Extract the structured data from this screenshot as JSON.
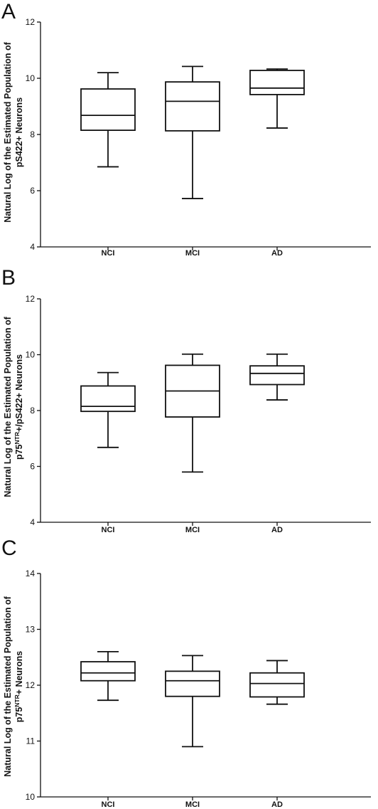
{
  "chart_data": [
    {
      "type": "box",
      "panel_label": "A",
      "title": "",
      "xlabel": "",
      "ylabel_lines": [
        "Natural Log of the Estimated Population of",
        "pS422+ Neurons"
      ],
      "ylim": [
        4,
        12
      ],
      "yticks": [
        4,
        6,
        8,
        10,
        12
      ],
      "categories": [
        "NCI",
        "MCI",
        "AD"
      ],
      "boxes": [
        {
          "category": "NCI",
          "min": 6.85,
          "q1": 8.15,
          "median": 8.68,
          "q3": 9.62,
          "max": 10.2
        },
        {
          "category": "MCI",
          "min": 5.72,
          "q1": 8.13,
          "median": 9.18,
          "q3": 9.87,
          "max": 10.42
        },
        {
          "category": "AD",
          "min": 8.23,
          "q1": 9.42,
          "median": 9.65,
          "q3": 10.28,
          "max": 10.33
        }
      ]
    },
    {
      "type": "box",
      "panel_label": "B",
      "title": "",
      "xlabel": "",
      "ylabel_lines": [
        "Natural Log of the Estimated Population of",
        "p75NTR+/pS422+ Neurons"
      ],
      "ylim": [
        4,
        12
      ],
      "yticks": [
        4,
        6,
        8,
        10,
        12
      ],
      "categories": [
        "NCI",
        "MCI",
        "AD"
      ],
      "boxes": [
        {
          "category": "NCI",
          "min": 6.68,
          "q1": 7.97,
          "median": 8.15,
          "q3": 8.88,
          "max": 9.36
        },
        {
          "category": "MCI",
          "min": 5.8,
          "q1": 7.77,
          "median": 8.7,
          "q3": 9.62,
          "max": 10.02
        },
        {
          "category": "AD",
          "min": 8.38,
          "q1": 8.93,
          "median": 9.33,
          "q3": 9.6,
          "max": 10.02
        }
      ]
    },
    {
      "type": "box",
      "panel_label": "C",
      "title": "",
      "xlabel": "",
      "ylabel_lines": [
        "Natural Log of the Estimated Population of",
        "p75NTR+ Neurons"
      ],
      "ylim": [
        10,
        14
      ],
      "yticks": [
        10,
        11,
        12,
        13,
        14
      ],
      "categories": [
        "NCI",
        "MCI",
        "AD"
      ],
      "boxes": [
        {
          "category": "NCI",
          "min": 11.73,
          "q1": 12.08,
          "median": 12.22,
          "q3": 12.42,
          "max": 12.6
        },
        {
          "category": "MCI",
          "min": 10.9,
          "q1": 11.8,
          "median": 12.08,
          "q3": 12.25,
          "max": 12.53
        },
        {
          "category": "AD",
          "min": 11.66,
          "q1": 11.79,
          "median": 12.03,
          "q3": 12.22,
          "max": 12.44
        }
      ]
    }
  ]
}
